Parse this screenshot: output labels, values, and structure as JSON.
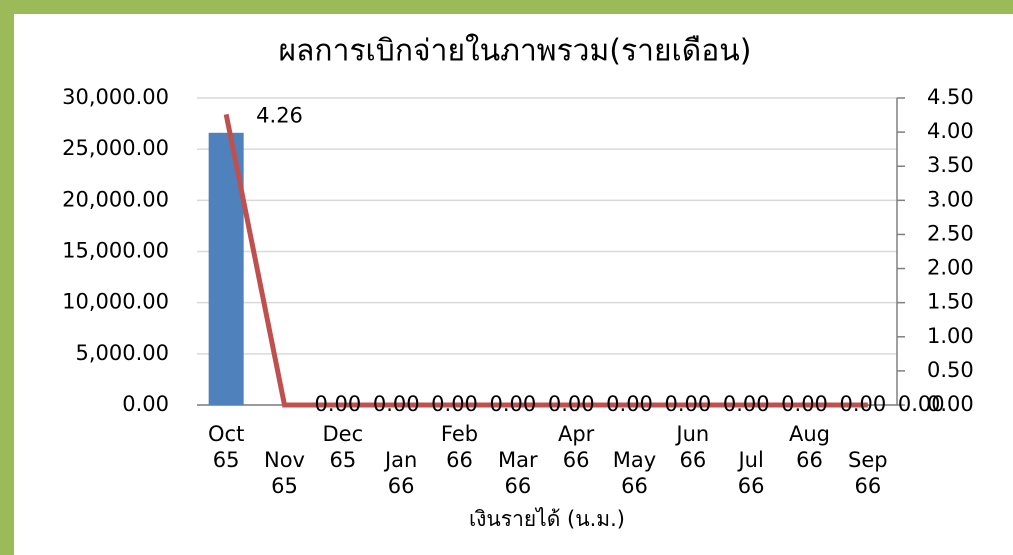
{
  "chart_data": {
    "type": "bar_line",
    "title": "ผลการเบิกจ่ายในภาพรวม(รายเดือน)",
    "x_label": "เงินรายได้ (น.ม.)",
    "categories": [
      "Oct 65",
      "Nov 65",
      "Dec 65",
      "Jan 66",
      "Feb 66",
      "Mar 66",
      "Apr 66",
      "May 66",
      "Jun 66",
      "Jul 66",
      "Aug 66",
      "Sep 66"
    ],
    "series": [
      {
        "type": "bar",
        "color": "#4f81bd",
        "values": [
          26600,
          0,
          0,
          0,
          0,
          0,
          0,
          0,
          0,
          0,
          0,
          0
        ]
      },
      {
        "type": "line",
        "axis": "y2",
        "color": "#c0504d",
        "values": [
          4.26,
          0,
          0,
          0,
          0,
          0,
          0,
          0,
          0,
          0,
          0,
          0
        ],
        "value_labels": [
          "4.26",
          "0.00",
          "0.00",
          "0.00",
          "0.00",
          "0.00",
          "0.00",
          "0.00",
          "0.00",
          "0.00",
          "0.00",
          "0.00"
        ]
      }
    ],
    "ylim": [
      0,
      30000
    ],
    "yticks": [
      {
        "value": 0,
        "label": "0.00"
      },
      {
        "value": 5000,
        "label": "5,000.00"
      },
      {
        "value": 10000,
        "label": "10,000.00"
      },
      {
        "value": 15000,
        "label": "15,000.00"
      },
      {
        "value": 20000,
        "label": "20,000.00"
      },
      {
        "value": 25000,
        "label": "25,000.00"
      },
      {
        "value": 30000,
        "label": "30,000.00"
      }
    ],
    "y2lim": [
      0,
      4.5
    ],
    "y2ticks": [
      {
        "value": 0,
        "label": "0.00"
      },
      {
        "value": 0.5,
        "label": "0.50"
      },
      {
        "value": 1,
        "label": "1.00"
      },
      {
        "value": 1.5,
        "label": "1.50"
      },
      {
        "value": 2,
        "label": "2.00"
      },
      {
        "value": 2.5,
        "label": "2.50"
      },
      {
        "value": 3,
        "label": "3.00"
      },
      {
        "value": 3.5,
        "label": "3.50"
      },
      {
        "value": 4,
        "label": "4.00"
      },
      {
        "value": 4.5,
        "label": "4.50"
      }
    ],
    "grid": true
  }
}
